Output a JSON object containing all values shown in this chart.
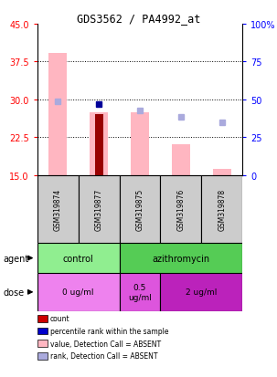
{
  "title": "GDS3562 / PA4992_at",
  "samples": [
    "GSM319874",
    "GSM319877",
    "GSM319875",
    "GSM319876",
    "GSM319878"
  ],
  "left_ylim": [
    15,
    45
  ],
  "left_yticks": [
    15,
    22.5,
    30,
    37.5,
    45
  ],
  "right_ylim": [
    0,
    100
  ],
  "right_yticks": [
    0,
    25,
    50,
    75,
    100
  ],
  "right_yticklabels": [
    "0",
    "25",
    "50",
    "75",
    "100%"
  ],
  "pink_bars": [
    39.2,
    27.5,
    27.5,
    21.0,
    16.2
  ],
  "dark_red_bars": [
    null,
    27.0,
    null,
    null,
    null
  ],
  "blue_rank_present": [
    null,
    29.0,
    null,
    null,
    null
  ],
  "light_blue_rank": [
    29.5,
    null,
    27.7,
    26.5,
    25.5
  ],
  "agent_groups": [
    {
      "label": "control",
      "cols": [
        0,
        1
      ],
      "color": "#90EE90"
    },
    {
      "label": "azithromycin",
      "cols": [
        2,
        3,
        4
      ],
      "color": "#55CC55"
    }
  ],
  "dose_groups": [
    {
      "label": "0 ug/ml",
      "cols": [
        0,
        1
      ],
      "color": "#EE82EE"
    },
    {
      "label": "0.5\nug/ml",
      "cols": [
        2
      ],
      "color": "#DD55DD"
    },
    {
      "label": "2 ug/ml",
      "cols": [
        3,
        4
      ],
      "color": "#BB22BB"
    }
  ],
  "legend_items": [
    {
      "color": "#CC0000",
      "label": "count"
    },
    {
      "color": "#0000CC",
      "label": "percentile rank within the sample"
    },
    {
      "color": "#FFB6C1",
      "label": "value, Detection Call = ABSENT"
    },
    {
      "color": "#AAAADD",
      "label": "rank, Detection Call = ABSENT"
    }
  ],
  "pink_color": "#FFB6C1",
  "dark_red_color": "#990000",
  "blue_color": "#000099",
  "light_blue_color": "#AAAADD",
  "bg_color": "#FFFFFF",
  "sample_bg": "#CCCCCC"
}
